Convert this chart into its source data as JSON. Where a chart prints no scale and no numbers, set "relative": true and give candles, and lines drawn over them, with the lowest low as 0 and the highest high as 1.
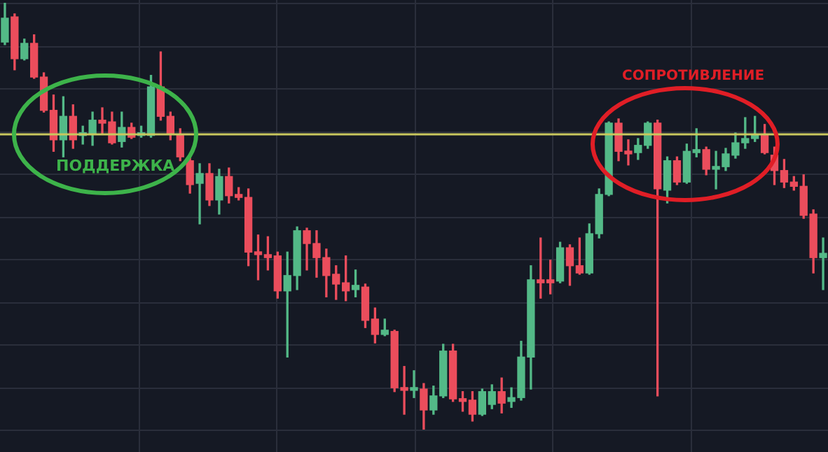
{
  "chart_data": {
    "type": "candlestick",
    "relative": true,
    "grid": true,
    "categories": [
      null,
      null,
      null,
      null,
      null,
      null,
      null,
      null,
      null,
      null,
      null,
      null,
      null,
      null,
      null,
      null,
      null,
      null,
      null,
      null,
      null,
      null,
      null,
      null,
      null,
      null,
      null,
      null,
      null,
      null,
      null,
      null,
      null,
      null,
      null,
      null,
      null,
      null,
      null,
      null,
      null,
      null,
      null,
      null,
      null,
      null,
      null,
      null,
      null,
      null,
      null,
      null,
      null,
      null,
      null,
      null,
      null,
      null,
      null,
      null,
      null,
      null,
      null,
      null,
      null,
      null,
      null,
      null,
      null,
      null,
      null,
      null,
      null,
      null,
      null,
      null,
      null,
      null,
      null,
      null,
      null,
      null,
      null,
      null,
      null
    ],
    "ohlc": [
      [
        0.908,
        1.0,
        0.902,
        0.964
      ],
      [
        0.967,
        0.974,
        0.843,
        0.869
      ],
      [
        0.869,
        0.915,
        0.866,
        0.905
      ],
      [
        0.905,
        0.925,
        0.823,
        0.826
      ],
      [
        0.826,
        0.836,
        0.744,
        0.748
      ],
      [
        0.748,
        0.784,
        0.652,
        0.679
      ],
      [
        0.679,
        0.78,
        0.639,
        0.734
      ],
      [
        0.734,
        0.761,
        0.659,
        0.679
      ],
      [
        0.689,
        0.711,
        0.669,
        0.692
      ],
      [
        0.692,
        0.744,
        0.666,
        0.725
      ],
      [
        0.725,
        0.754,
        0.692,
        0.718
      ],
      [
        0.721,
        0.744,
        0.669,
        0.672
      ],
      [
        0.675,
        0.744,
        0.662,
        0.708
      ],
      [
        0.708,
        0.718,
        0.682,
        0.685
      ],
      [
        0.689,
        0.711,
        0.685,
        0.692
      ],
      [
        0.689,
        0.83,
        0.685,
        0.803
      ],
      [
        0.803,
        0.885,
        0.725,
        0.734
      ],
      [
        0.734,
        0.744,
        0.679,
        0.692
      ],
      [
        0.692,
        0.705,
        0.63,
        0.639
      ],
      [
        0.63,
        0.639,
        0.554,
        0.574
      ],
      [
        0.577,
        0.623,
        0.482,
        0.6
      ],
      [
        0.6,
        0.623,
        0.525,
        0.538
      ],
      [
        0.538,
        0.61,
        0.505,
        0.593
      ],
      [
        0.593,
        0.613,
        0.531,
        0.548
      ],
      [
        0.551,
        0.567,
        0.538,
        0.544
      ],
      [
        0.544,
        0.564,
        0.384,
        0.416
      ],
      [
        0.416,
        0.456,
        0.351,
        0.41
      ],
      [
        0.41,
        0.452,
        0.374,
        0.403
      ],
      [
        0.407,
        0.416,
        0.308,
        0.325
      ],
      [
        0.325,
        0.416,
        0.17,
        0.361
      ],
      [
        0.361,
        0.475,
        0.328,
        0.466
      ],
      [
        0.466,
        0.472,
        0.374,
        0.436
      ],
      [
        0.436,
        0.466,
        0.357,
        0.403
      ],
      [
        0.403,
        0.423,
        0.311,
        0.361
      ],
      [
        0.364,
        0.384,
        0.305,
        0.341
      ],
      [
        0.344,
        0.407,
        0.302,
        0.325
      ],
      [
        0.328,
        0.374,
        0.311,
        0.338
      ],
      [
        0.334,
        0.341,
        0.239,
        0.256
      ],
      [
        0.259,
        0.285,
        0.203,
        0.223
      ],
      [
        0.223,
        0.259,
        0.22,
        0.233
      ],
      [
        0.23,
        0.233,
        0.089,
        0.098
      ],
      [
        0.098,
        0.148,
        0.036,
        0.092
      ],
      [
        0.092,
        0.138,
        0.075,
        0.098
      ],
      [
        0.095,
        0.108,
        0.0,
        0.046
      ],
      [
        0.046,
        0.102,
        0.036,
        0.079
      ],
      [
        0.079,
        0.2,
        0.075,
        0.184
      ],
      [
        0.184,
        0.2,
        0.066,
        0.072
      ],
      [
        0.072,
        0.089,
        0.043,
        0.066
      ],
      [
        0.069,
        0.089,
        0.02,
        0.036
      ],
      [
        0.036,
        0.095,
        0.033,
        0.089
      ],
      [
        0.059,
        0.105,
        0.049,
        0.089
      ],
      [
        0.089,
        0.121,
        0.039,
        0.062
      ],
      [
        0.066,
        0.098,
        0.052,
        0.075
      ],
      [
        0.075,
        0.207,
        0.069,
        0.17
      ],
      [
        0.17,
        0.384,
        0.095,
        0.351
      ],
      [
        0.351,
        0.449,
        0.308,
        0.344
      ],
      [
        0.351,
        0.397,
        0.318,
        0.344
      ],
      [
        0.348,
        0.439,
        0.344,
        0.426
      ],
      [
        0.426,
        0.433,
        0.338,
        0.384
      ],
      [
        0.384,
        0.449,
        0.364,
        0.367
      ],
      [
        0.367,
        0.482,
        0.364,
        0.459
      ],
      [
        0.459,
        0.564,
        0.449,
        0.551
      ],
      [
        0.551,
        0.721,
        0.548,
        0.718
      ],
      [
        0.718,
        0.728,
        0.63,
        0.652
      ],
      [
        0.652,
        0.679,
        0.62,
        0.646
      ],
      [
        0.649,
        0.682,
        0.633,
        0.666
      ],
      [
        0.666,
        0.721,
        0.659,
        0.718
      ],
      [
        0.718,
        0.725,
        0.079,
        0.564
      ],
      [
        0.561,
        0.639,
        0.531,
        0.63
      ],
      [
        0.63,
        0.639,
        0.574,
        0.58
      ],
      [
        0.58,
        0.669,
        0.577,
        0.652
      ],
      [
        0.649,
        0.705,
        0.639,
        0.656
      ],
      [
        0.656,
        0.662,
        0.597,
        0.61
      ],
      [
        0.61,
        0.652,
        0.564,
        0.616
      ],
      [
        0.616,
        0.659,
        0.607,
        0.646
      ],
      [
        0.643,
        0.695,
        0.636,
        0.672
      ],
      [
        0.672,
        0.731,
        0.659,
        0.682
      ],
      [
        0.682,
        0.734,
        0.675,
        0.692
      ],
      [
        0.689,
        0.715,
        0.646,
        0.649
      ],
      [
        0.643,
        0.662,
        0.574,
        0.607
      ],
      [
        0.607,
        0.633,
        0.567,
        0.58
      ],
      [
        0.58,
        0.593,
        0.561,
        0.57
      ],
      [
        0.57,
        0.597,
        0.495,
        0.502
      ],
      [
        0.505,
        0.515,
        0.367,
        0.403
      ],
      [
        0.403,
        0.449,
        0.328,
        0.413
      ]
    ],
    "ref_lines": [
      {
        "axis": "y",
        "value": 0.692,
        "color": "#c9c75e"
      }
    ],
    "annotations": [
      "ПОДДЕРЖКА",
      "СОПРОТИВЛЕНИЕ"
    ]
  }
}
